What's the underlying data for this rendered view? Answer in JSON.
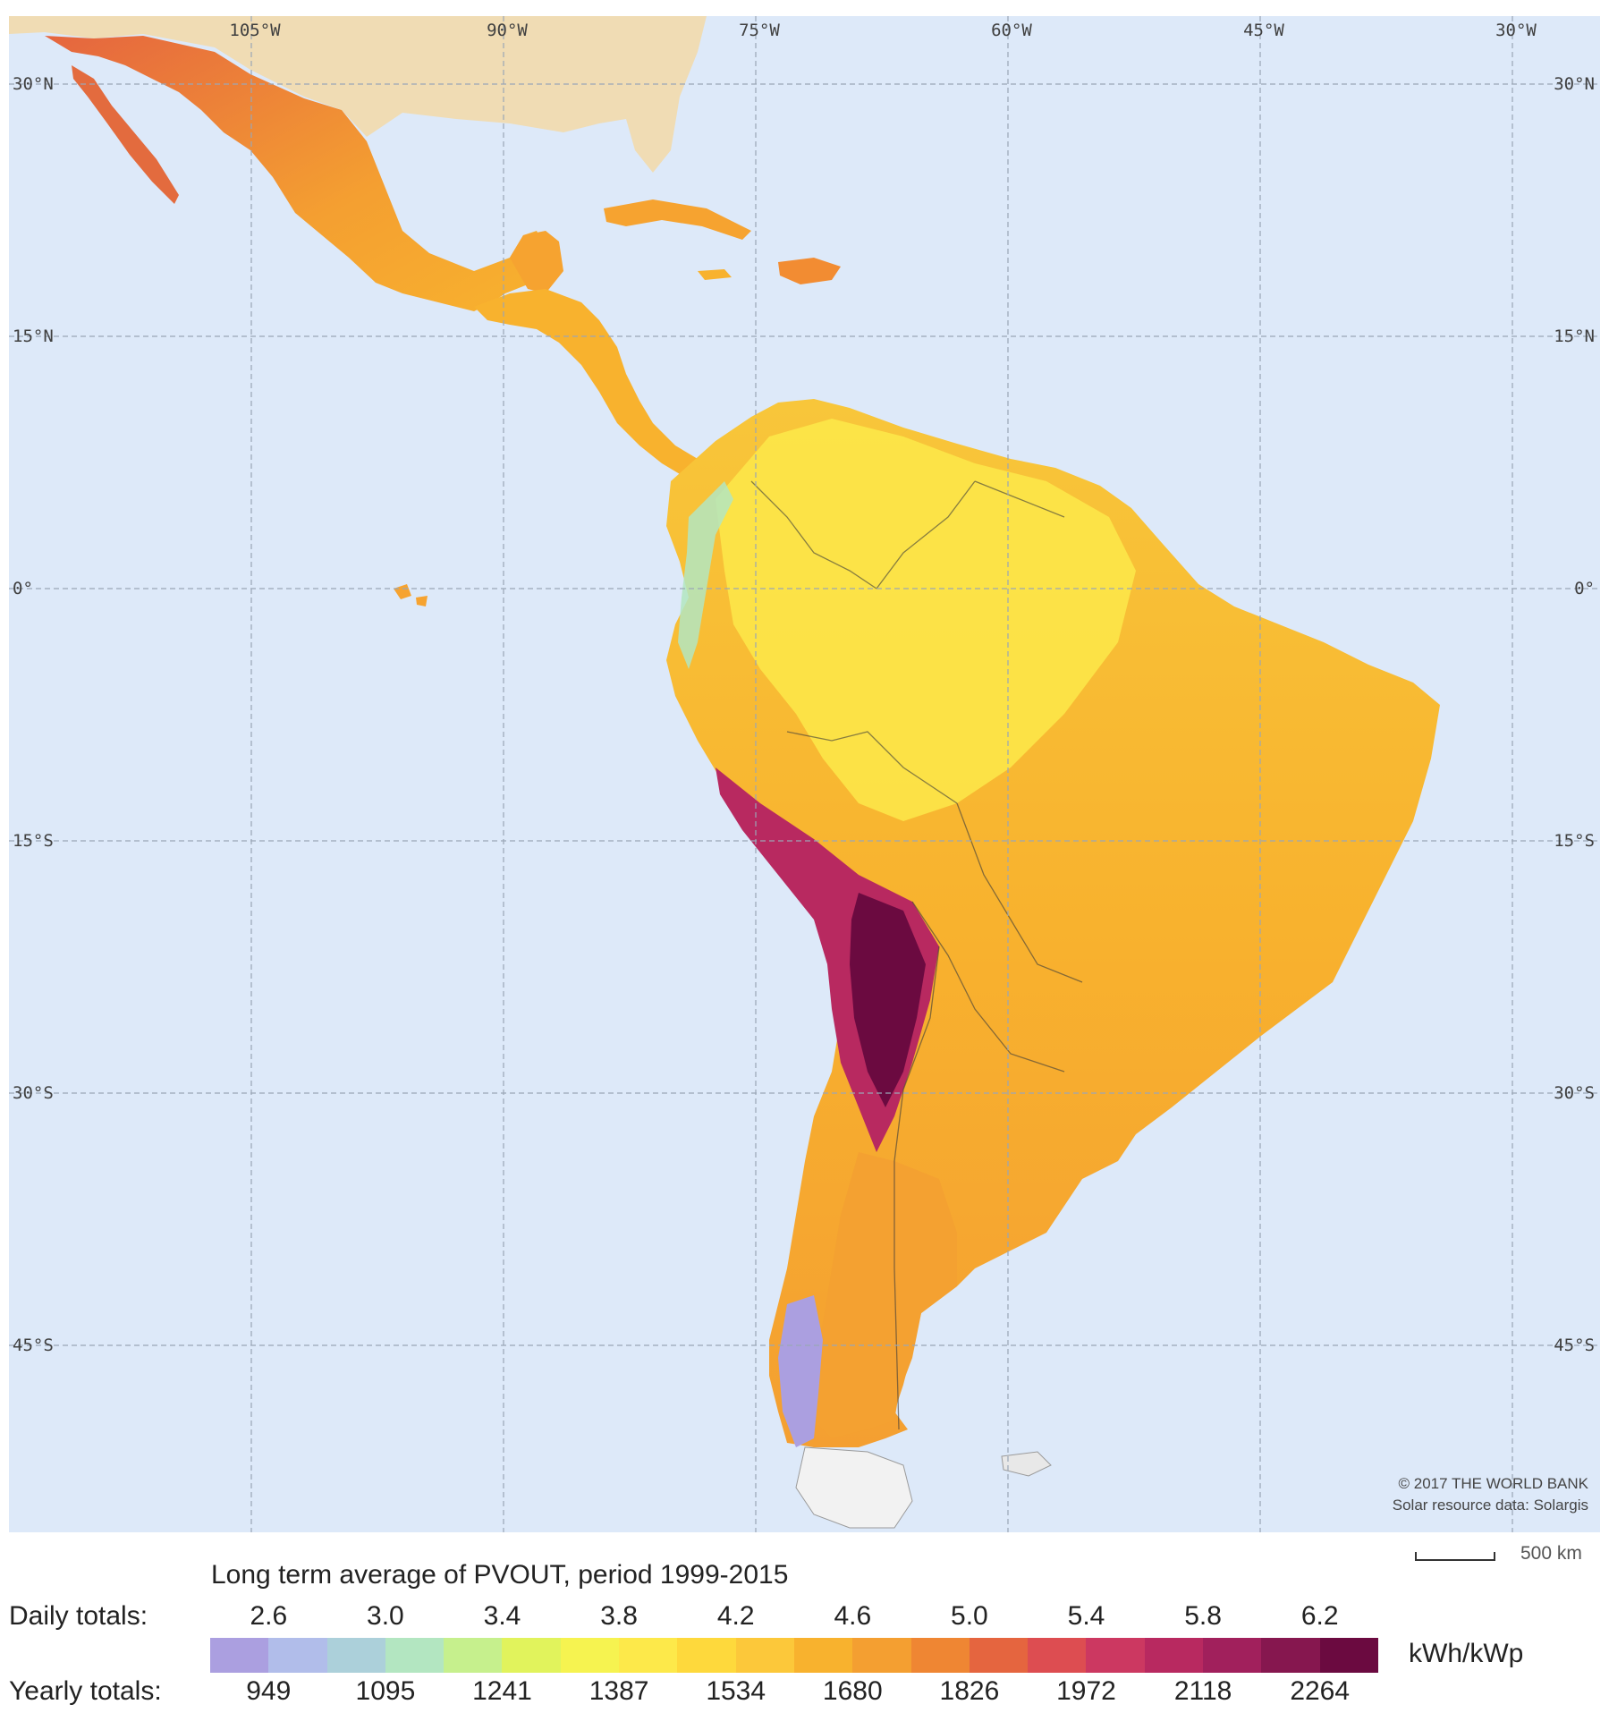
{
  "map": {
    "lon_labels": [
      "105°W",
      "90°W",
      "75°W",
      "60°W",
      "45°W",
      "30°W"
    ],
    "lat_labels_left": [
      "30°N",
      "15°N",
      "0°",
      "15°S",
      "30°S",
      "45°S"
    ],
    "lat_labels_right": [
      "30°N",
      "15°N",
      "0°",
      "15°S",
      "30°S",
      "45°S"
    ],
    "ocean_color": "#dde9f9",
    "north_america_color": "#f0dcb4",
    "credit_line1": "© 2017 THE WORLD BANK",
    "credit_line2": "Solar resource data: Solargis"
  },
  "scale": {
    "label": "500 km"
  },
  "legend": {
    "title": "Long term average of PVOUT, period 1999-2015",
    "daily_label": "Daily totals:",
    "yearly_label": "Yearly totals:",
    "daily_ticks": [
      "2.6",
      "3.0",
      "3.4",
      "3.8",
      "4.2",
      "4.6",
      "5.0",
      "5.4",
      "5.8",
      "6.2"
    ],
    "yearly_ticks": [
      "949",
      "1095",
      "1241",
      "1387",
      "1534",
      "1680",
      "1826",
      "1972",
      "2118",
      "2264"
    ],
    "unit": "kWh/kWp",
    "colors": [
      "#ab9fe0",
      "#b1bdea",
      "#acd0da",
      "#b3e6c1",
      "#c6f08d",
      "#e1f35c",
      "#f6f350",
      "#fde94a",
      "#fed93c",
      "#fcc83a",
      "#f8b22e",
      "#f49f31",
      "#ef8633",
      "#e5653f",
      "#dd4d51",
      "#cc3861",
      "#b82960",
      "#a1205c",
      "#86174f",
      "#6b0a40"
    ]
  }
}
